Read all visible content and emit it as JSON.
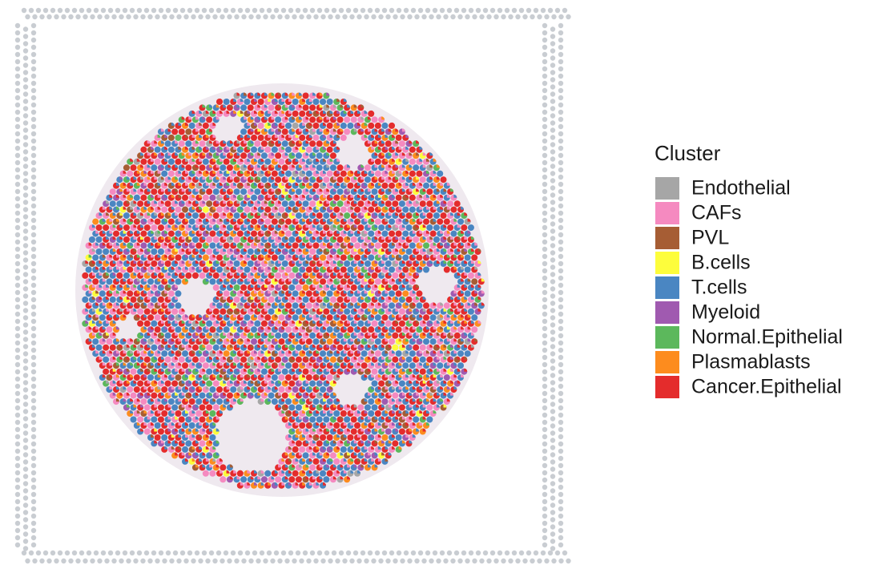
{
  "legend": {
    "title": "Cluster",
    "items": [
      {
        "label": "Endothelial",
        "color": "#a6a6a6"
      },
      {
        "label": "CAFs",
        "color": "#f58ac0"
      },
      {
        "label": "PVL",
        "color": "#a65d34"
      },
      {
        "label": "B.cells",
        "color": "#fdfd3c"
      },
      {
        "label": "T.cells",
        "color": "#4a86c2"
      },
      {
        "label": "Myeloid",
        "color": "#a05ab0"
      },
      {
        "label": "Normal.Epithelial",
        "color": "#5cb85c"
      },
      {
        "label": "Plasmablasts",
        "color": "#fd8c1e"
      },
      {
        "label": "Cancer.Epithelial",
        "color": "#e42c2c"
      }
    ]
  }
}
